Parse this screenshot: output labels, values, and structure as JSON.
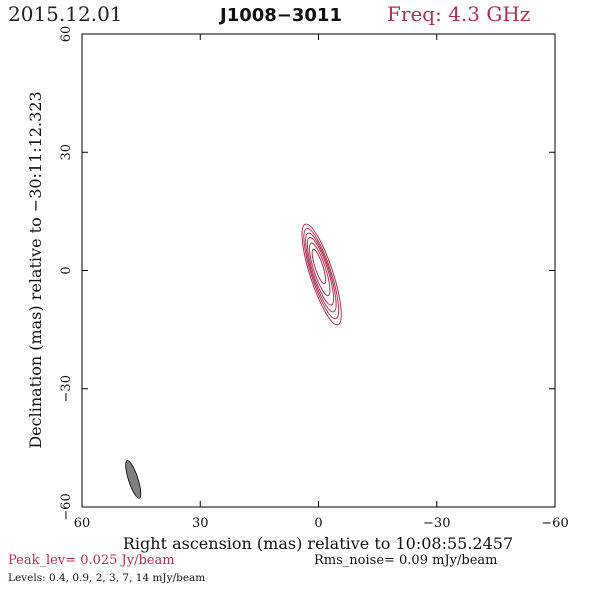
{
  "header": {
    "date": "2015.12.01",
    "source": "J1008−3011",
    "freq": "Freq: 4.3 GHz"
  },
  "footer": {
    "peak": "Peak_lev=  0.025 Jy/beam",
    "rms": "Rms_noise= 0.09 mJy/beam",
    "levels": "Levels: 0.4,  0.9,    2,    3,    7,   14  mJy/beam"
  },
  "colors": {
    "contour": "#b03050",
    "beam": "#808080",
    "frame": "#000000"
  },
  "chart_data": {
    "type": "contour",
    "xlabel": "Right ascension (mas) relative to 10:08:55.2457",
    "ylabel": "Declination (mas) relative to −30:11:12.323",
    "xlim": [
      60,
      -60
    ],
    "ylim": [
      -60,
      60
    ],
    "xticks": [
      60,
      30,
      0,
      -30,
      -60
    ],
    "yticks": [
      -60,
      -30,
      0,
      30,
      60
    ],
    "xtick_labels": [
      "60",
      "30",
      "0",
      "−30",
      "−60"
    ],
    "ytick_labels": [
      "−60",
      "−30",
      "0",
      "30",
      "60"
    ],
    "contour_levels_mJy": [
      0.4,
      0.9,
      2,
      3,
      7,
      14
    ],
    "peak_Jy_per_beam": 0.025,
    "rms_mJy_per_beam": 0.09,
    "source_center": [
      0,
      0
    ],
    "contours": [
      {
        "level": 0.4,
        "x0": -0.8,
        "y0": -1.0,
        "semi_major": 13.4,
        "semi_minor": 2.9,
        "pa_deg": 18
      },
      {
        "level": 0.9,
        "x0": -0.7,
        "y0": -0.8,
        "semi_major": 12.0,
        "semi_minor": 2.5,
        "pa_deg": 18
      },
      {
        "level": 2,
        "x0": -0.6,
        "y0": -0.5,
        "semi_major": 10.5,
        "semi_minor": 2.2,
        "pa_deg": 18
      },
      {
        "level": 3,
        "x0": -0.5,
        "y0": -0.2,
        "semi_major": 9.0,
        "semi_minor": 1.9,
        "pa_deg": 18
      },
      {
        "level": 7,
        "x0": -0.3,
        "y0": 0.3,
        "semi_major": 7.0,
        "semi_minor": 1.5,
        "pa_deg": 18
      },
      {
        "level": 14,
        "x0": -0.1,
        "y0": 1.0,
        "semi_major": 4.6,
        "semi_minor": 1.0,
        "pa_deg": 18
      }
    ],
    "beam": {
      "x0": 47.0,
      "y0": -53.0,
      "semi_major": 5.0,
      "semi_minor": 1.2,
      "pa_deg": 18
    }
  }
}
